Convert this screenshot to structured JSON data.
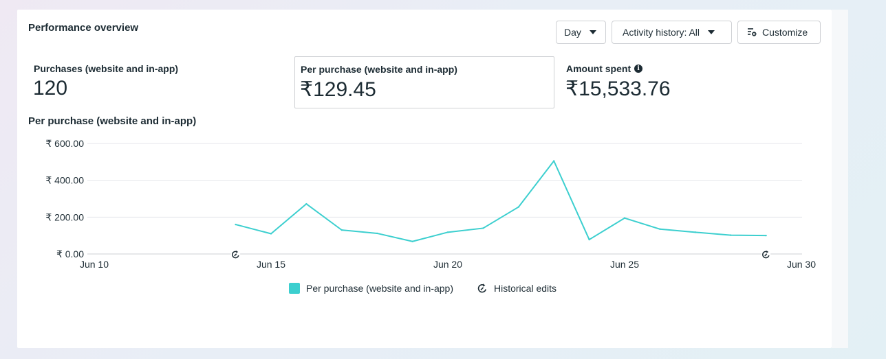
{
  "header": {
    "title": "Performance overview"
  },
  "controls": {
    "day_label": "Day",
    "activity_label": "Activity history: All",
    "customize_label": "Customize"
  },
  "metrics": [
    {
      "label": "Purchases (website and in-app)",
      "value": "120"
    },
    {
      "label": "Per purchase (website and in-app)",
      "value": "₹129.45"
    },
    {
      "label": "Amount spent",
      "value": "₹15,533.76"
    }
  ],
  "chart_title": "Per purchase (website and in-app)",
  "legend": {
    "series_label": "Per purchase (website and in-app)",
    "edits_label": "Historical edits"
  },
  "colors": {
    "series": "#3ccfcf",
    "text": "#1c2b33",
    "grid": "#e4e6eb"
  },
  "chart_data": {
    "type": "line",
    "title": "Per purchase (website and in-app)",
    "ylim": [
      0,
      600
    ],
    "y_ticks": [
      {
        "value": 0,
        "label": "₹ 0.00"
      },
      {
        "value": 200,
        "label": "₹ 200.00"
      },
      {
        "value": 400,
        "label": "₹ 400.00"
      },
      {
        "value": 600,
        "label": "₹ 600.00"
      }
    ],
    "x_ticks": [
      {
        "day": 10,
        "label": "Jun 10"
      },
      {
        "day": 15,
        "label": "Jun 15"
      },
      {
        "day": 20,
        "label": "Jun 20"
      },
      {
        "day": 25,
        "label": "Jun 25"
      },
      {
        "day": 30,
        "label": "Jun 30"
      }
    ],
    "xlim": [
      10,
      30
    ],
    "grid": true,
    "series": [
      {
        "name": "Per purchase (website and in-app)",
        "x": [
          14,
          15,
          16,
          17,
          18,
          19,
          20,
          21,
          22,
          23,
          24,
          25,
          26,
          27,
          28,
          29
        ],
        "y": [
          160,
          110,
          272,
          130,
          112,
          68,
          118,
          140,
          255,
          505,
          78,
          195,
          135,
          118,
          102,
          100
        ]
      }
    ],
    "historical_edits": [
      14,
      29
    ]
  }
}
